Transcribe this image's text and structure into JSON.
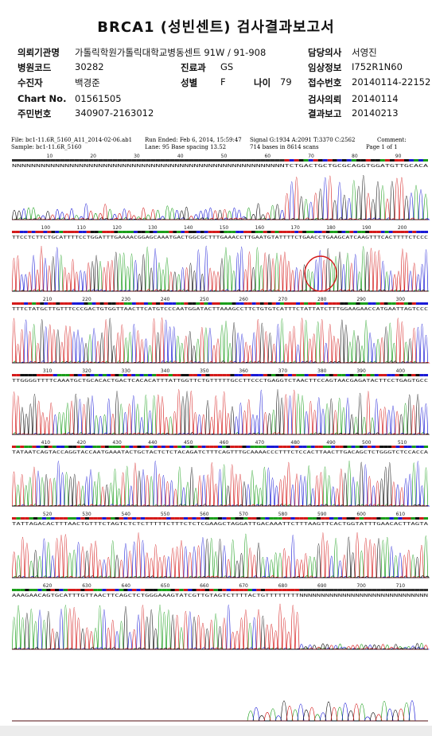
{
  "report": {
    "title": "BRCA1 (성빈센트) 검사결과보고서"
  },
  "info": {
    "institution_label": "의뢰기관명",
    "institution_value": "가톨릭학원가톨릭대학교병동센트 91W / 91-908",
    "doctor_label": "담당의사",
    "doctor_value": "서영진",
    "hospital_code_label": "병원코드",
    "hospital_code_value": "30282",
    "dept_label": "진료과",
    "dept_value": "GS",
    "clinical_label": "임상정보",
    "clinical_value": "I752R1N60",
    "patient_label": "수진자",
    "patient_value": "백경준",
    "sex_label": "성별",
    "sex_value": "F",
    "age_label": "나이",
    "age_value": "79",
    "receipt_label": "접수번호",
    "receipt_value": "20140114-22152",
    "chart_label": "Chart No.",
    "chart_value": "01561505",
    "request_label": "검사의뢰",
    "request_value": "20140114",
    "rrn_label": "주민번호",
    "rrn_value": "340907-2163012",
    "result_label": "결과보고",
    "result_value": "20140213"
  },
  "trace": {
    "file_text": "File: bc1-11.6R_5160_A11_2014-02-06.ab1",
    "sample_text": "Sample: bc1-11.6R_5160",
    "run_text": "Run Ended: Feb 6, 2014, 15:59:47",
    "lane_text": "Lane: 95  Base spacing 13.52",
    "signal_text": "Signal G:1934 A:2091 T:3370 C:2562",
    "bases_text": "714 bases in 8614 scans",
    "comment_text": "Comment:",
    "page_text": "Page 1 of 1",
    "colors": {
      "A": "#1a9e1a",
      "C": "#1a1ad6",
      "G": "#111111",
      "T": "#d41a1a",
      "highlight": "#d41a1a"
    },
    "rows": [
      {
        "ticks": [
          "10",
          "20",
          "30",
          "40",
          "50",
          "60",
          "70",
          "80",
          "90"
        ],
        "seq": "NNNNNNNNNNNNNNNNNNNNNNNNNNNNNNNNNNNNNNNNNNNNNNNNNNNNNNNNNTCTGACTGCTGCGCAGGTGGATGTTGCACA"
      },
      {
        "ticks": [
          "100",
          "110",
          "120",
          "130",
          "140",
          "150",
          "160",
          "170",
          "180",
          "190",
          "200"
        ],
        "seq": "TTCCTCTTCTGCATTTTCCTGGATTTGAAAACGGAGCAAATGACTGGCGCTTTGAAACCTTGAATGTATTTTCTGAACCTGAAGCATCAAGTTTCACTTTTCTCCC"
      },
      {
        "ticks": [
          "210",
          "220",
          "230",
          "240",
          "250",
          "260",
          "270",
          "280",
          "290",
          "300"
        ],
        "seq": "TTTCTATGCTTGTTTCCCGACTGTGGTTAACTTCATGTCCCAATGGATACTTAAAGCCTTCTGTGTCATTTCTATTATCTTTGGAAGAACCATGAATTAGTCCC"
      },
      {
        "ticks": [
          "310",
          "320",
          "330",
          "340",
          "350",
          "360",
          "370",
          "380",
          "390",
          "400"
        ],
        "seq": "TTGGGGTTTTCAAATGCTGCACACTGACTCACACATTTATTGGTTCTGTTTTTGCCTTCCCTGAGGTCTAACTTCCAGTAACGAGATACTTCCTGAGTGCC"
      },
      {
        "ticks": [
          "410",
          "420",
          "430",
          "440",
          "450",
          "460",
          "470",
          "480",
          "490",
          "500",
          "510"
        ],
        "seq": "TATAATCAGTACCAGGTACCAATGAAATACTGCTACTCTCTACAGATCTTTCAGTTTGCAAAACCCTTTCTCCACTTAACTTGACAGCTCTGGGTCTCCACCA"
      },
      {
        "ticks": [
          "520",
          "530",
          "540",
          "550",
          "560",
          "570",
          "580",
          "590",
          "600",
          "610"
        ],
        "seq": "TATTAGACACTTTAACTGTTTCTAGTCTCTCTTTTTCTTTCTCTCGAAGCTAGGATTGACAAATTCTTTAAGTTCACTGGTATTTGAACACTTAGTA"
      },
      {
        "ticks": [
          "620",
          "630",
          "640",
          "650",
          "660",
          "670",
          "680",
          "690",
          "700",
          "710"
        ],
        "seq": "AAAGAACAGTGCATTTGTTAACTTCAGCTCTGGGAAAGTATCGTTGTAGTCTTTTACTGTTTTTTTTNNNNNNNNNNNNNNNNNNNNNNNNNNNNNN"
      },
      {
        "ticks": [],
        "seq": ""
      }
    ]
  }
}
